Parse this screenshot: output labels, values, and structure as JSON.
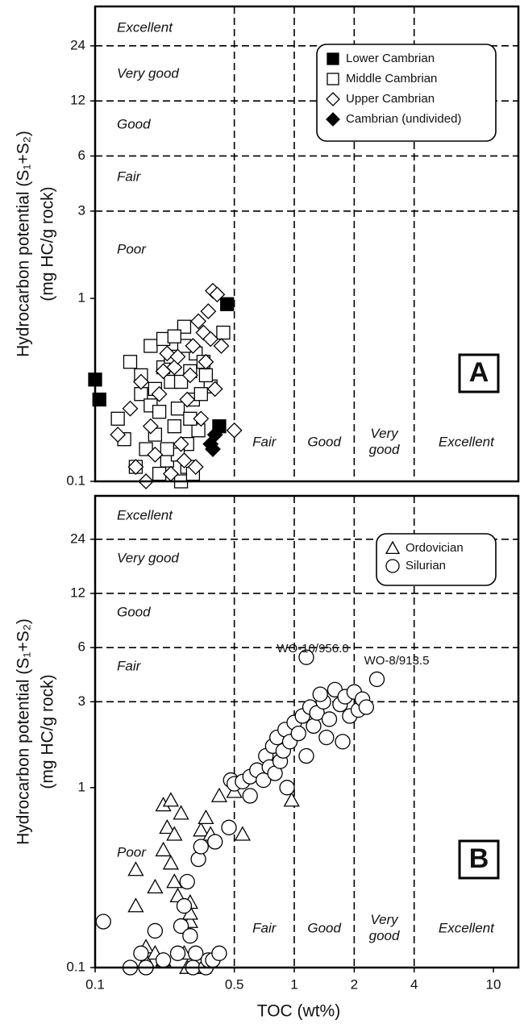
{
  "chart_data": [
    {
      "type": "scatter",
      "ylabel": [
        "Hydrocarbon potential (S₁+S₂)",
        "(mg HC/g rock)"
      ],
      "panel_label": "A",
      "xlim": [
        0.1,
        13.35
      ],
      "ylim": [
        0.1,
        39.4
      ],
      "log_x": true,
      "log_y": true,
      "yticks": [
        0.1,
        1,
        3,
        6,
        12,
        24
      ],
      "hlines": [
        3,
        6,
        12,
        24
      ],
      "vlines": [
        0.5,
        1,
        2,
        4
      ],
      "y_zones": [
        "Excellent",
        "Very good",
        "Good",
        "Fair",
        "Poor"
      ],
      "x_zones": [
        "Fair",
        "Good",
        "Very good",
        "Excellent"
      ],
      "legend": "upper right",
      "series": [
        {
          "name": "Lower Cambrian",
          "marker": "square",
          "color": "#000000",
          "x": [
            0.1,
            0.105,
            0.46,
            0.42
          ],
          "values": [
            0.36,
            0.28,
            0.93,
            0.2
          ]
        },
        {
          "name": "Middle Cambrian",
          "marker": "square",
          "color": "#ffffff",
          "x": [
            0.13,
            0.15,
            0.17,
            0.19,
            0.2,
            0.22,
            0.24,
            0.26,
            0.28,
            0.3,
            0.32,
            0.35,
            0.38,
            0.44,
            0.16,
            0.18,
            0.21,
            0.23,
            0.25,
            0.27,
            0.29,
            0.31,
            0.33,
            0.36,
            0.14,
            0.19,
            0.22,
            0.26,
            0.3,
            0.34,
            0.2,
            0.24,
            0.28,
            0.17,
            0.21,
            0.25,
            0.29,
            0.23,
            0.27,
            0.31
          ],
          "values": [
            0.22,
            0.45,
            0.3,
            0.55,
            0.18,
            0.6,
            0.35,
            0.25,
            0.7,
            0.4,
            0.5,
            0.45,
            0.33,
            0.65,
            0.12,
            0.15,
            0.11,
            0.13,
            0.2,
            0.1,
            0.16,
            0.28,
            0.19,
            0.38,
            0.17,
            0.26,
            0.42,
            0.14,
            0.22,
            0.3,
            0.32,
            0.48,
            0.55,
            0.38,
            0.24,
            0.62,
            0.12,
            0.15,
            0.35,
            0.11
          ]
        },
        {
          "name": "Upper Cambrian",
          "marker": "diamond",
          "color": "#ffffff",
          "x": [
            0.13,
            0.15,
            0.17,
            0.19,
            0.21,
            0.23,
            0.25,
            0.27,
            0.29,
            0.31,
            0.33,
            0.35,
            0.37,
            0.39,
            0.41,
            0.43,
            0.5,
            0.28,
            0.32,
            0.36,
            0.4,
            0.24,
            0.2,
            0.16,
            0.3,
            0.34,
            0.38,
            0.26,
            0.22,
            0.18
          ],
          "values": [
            0.18,
            0.25,
            0.35,
            0.2,
            0.3,
            0.5,
            0.42,
            0.16,
            0.28,
            0.55,
            0.75,
            0.65,
            0.85,
            1.1,
            1.05,
            0.55,
            0.19,
            0.13,
            0.12,
            0.45,
            0.32,
            0.11,
            0.14,
            0.12,
            0.38,
            0.22,
            0.6,
            0.48,
            0.4,
            0.1
          ]
        },
        {
          "name": "Cambrian (undivided)",
          "marker": "diamond",
          "color": "#000000",
          "x": [
            0.4,
            0.39,
            0.38
          ],
          "values": [
            0.18,
            0.15,
            0.16
          ]
        }
      ]
    },
    {
      "type": "scatter",
      "ylabel": [
        "Hydrocarbon potential (S₁+S₂)",
        "(mg HC/g rock)"
      ],
      "xlabel": "TOC (wt%)",
      "panel_label": "B",
      "xlim": [
        0.1,
        13.35
      ],
      "ylim": [
        0.1,
        41.8
      ],
      "log_x": true,
      "log_y": true,
      "xticks": [
        0.1,
        0.5,
        1,
        2,
        4,
        10
      ],
      "yticks": [
        0.1,
        1,
        3,
        6,
        12,
        24
      ],
      "hlines": [
        3,
        6,
        12,
        24
      ],
      "vlines": [
        0.5,
        1,
        2,
        4
      ],
      "y_zones": [
        "Excellent",
        "Very good",
        "Good",
        "Fair",
        "Poor"
      ],
      "x_zones": [
        "Fair",
        "Good",
        "Very good",
        "Excellent"
      ],
      "annotations": [
        "WO-10/956.0",
        "WO-8/913.5"
      ],
      "legend": "upper right",
      "series": [
        {
          "name": "Ordovician",
          "marker": "triangle",
          "color": "#ffffff",
          "x": [
            0.16,
            0.16,
            0.18,
            0.18,
            0.2,
            0.2,
            0.22,
            0.22,
            0.23,
            0.24,
            0.24,
            0.25,
            0.26,
            0.27,
            0.28,
            0.29,
            0.3,
            0.3,
            0.3,
            0.34,
            0.36,
            0.38,
            0.42,
            0.5,
            0.55,
            0.97,
            0.22,
            0.25,
            0.35,
            0.32
          ],
          "values": [
            0.35,
            0.22,
            0.13,
            0.11,
            0.28,
            0.12,
            0.45,
            0.8,
            0.6,
            0.85,
            0.38,
            0.3,
            0.25,
            0.72,
            0.12,
            0.1,
            0.18,
            0.2,
            0.23,
            0.58,
            0.68,
            0.55,
            0.9,
            0.95,
            0.55,
            0.85,
            0.11,
            0.55,
            0.1,
            0.1
          ]
        },
        {
          "name": "Silurian",
          "marker": "circle",
          "color": "#ffffff",
          "x": [
            0.11,
            0.15,
            0.17,
            0.18,
            0.2,
            0.22,
            0.26,
            0.27,
            0.28,
            0.29,
            0.3,
            0.31,
            0.32,
            0.33,
            0.34,
            0.36,
            0.37,
            0.39,
            0.4,
            0.42,
            0.47,
            0.48,
            0.5,
            0.55,
            0.6,
            0.65,
            0.7,
            0.72,
            0.75,
            0.78,
            0.8,
            0.82,
            0.85,
            0.88,
            0.9,
            0.92,
            0.95,
            1.0,
            1.05,
            1.1,
            1.15,
            1.2,
            1.25,
            1.3,
            1.4,
            1.5,
            1.6,
            1.7,
            1.8,
            1.9,
            2.0,
            2.1,
            2.2,
            2.3,
            1.15,
            2.6,
            1.45,
            1.75,
            1.35,
            0.6
          ],
          "values": [
            0.18,
            0.1,
            0.12,
            0.1,
            0.16,
            0.11,
            0.12,
            0.17,
            0.22,
            0.3,
            0.15,
            0.1,
            0.12,
            0.4,
            0.47,
            0.1,
            0.11,
            0.11,
            0.5,
            0.12,
            0.6,
            1.1,
            1.05,
            1.08,
            1.15,
            1.25,
            1.1,
            1.5,
            1.3,
            1.7,
            1.2,
            1.9,
            1.4,
            1.6,
            2.1,
            1.0,
            1.8,
            2.3,
            2.0,
            2.5,
            1.5,
            2.8,
            2.2,
            2.6,
            3.0,
            2.4,
            3.5,
            2.9,
            3.2,
            2.5,
            3.4,
            2.7,
            3.1,
            2.8,
            5.3,
            4.0,
            1.9,
            1.8,
            3.3,
            0.9
          ]
        }
      ]
    }
  ]
}
